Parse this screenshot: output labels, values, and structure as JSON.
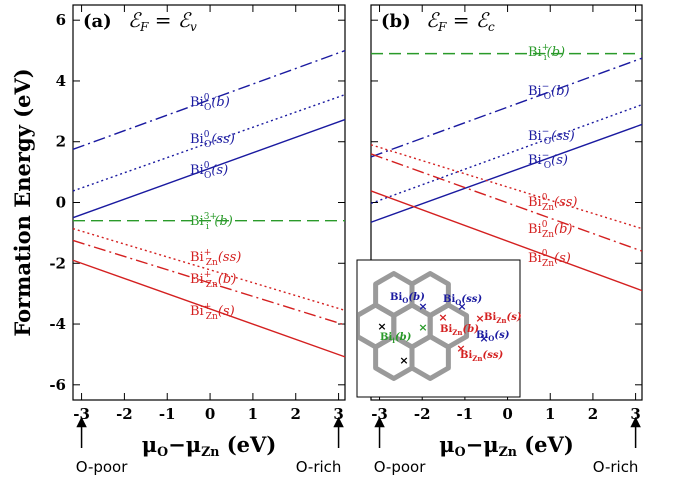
{
  "chart_data": [
    {
      "type": "line",
      "panel": "(a)",
      "title": [
        {
          "text": "ℰ"
        },
        {
          "text": "F",
          "sub": true
        },
        {
          "text": " = ℰ"
        },
        {
          "text": "v",
          "sub": true
        }
      ],
      "y_label": "Formation Energy (eV)",
      "x_label": [
        {
          "text": "μ"
        },
        {
          "text": "O",
          "sub": true
        },
        {
          "text": "−μ"
        },
        {
          "text": "Zn",
          "sub": true
        },
        {
          "text": " (eV)"
        }
      ],
      "annotations": [
        "O-poor",
        "O-rich"
      ],
      "x": [
        -3.2,
        3.15
      ],
      "xlim": [
        -3.2,
        3.15
      ],
      "ylim": [
        -6.5,
        6.5
      ],
      "xticks": [
        -3,
        -2,
        -1,
        0,
        1,
        2,
        3
      ],
      "yticks": [
        -6,
        -4,
        -2,
        0,
        2,
        4,
        6
      ],
      "show_ytick_labels": true,
      "series": [
        {
          "name": {
            "base": "Bi",
            "sub": "O",
            "sup": "0",
            "suffix": "(b)"
          },
          "color": "#1a1aa0",
          "style": "dashdot",
          "values": [
            1.75,
            5.0
          ]
        },
        {
          "name": {
            "base": "Bi",
            "sub": "O",
            "sup": "0",
            "suffix": "(ss)"
          },
          "color": "#1a1aa0",
          "style": "dotted",
          "values": [
            0.38,
            3.55
          ]
        },
        {
          "name": {
            "base": "Bi",
            "sub": "O",
            "sup": "0",
            "suffix": "(s)"
          },
          "color": "#1a1aa0",
          "style": "solid",
          "values": [
            -0.5,
            2.73
          ]
        },
        {
          "name": {
            "base": "Bi",
            "sub": "i",
            "sup": "3+",
            "suffix": "(b)"
          },
          "color": "#2a9a2a",
          "style": "dashed",
          "values": [
            -0.6,
            -0.6
          ]
        },
        {
          "name": {
            "base": "Bi",
            "sub": "Zn",
            "sup": "+",
            "suffix": "(ss)"
          },
          "color": "#d42020",
          "style": "dotted",
          "values": [
            -0.86,
            -3.55
          ]
        },
        {
          "name": {
            "base": "Bi",
            "sub": "Zn",
            "sup": "+",
            "suffix": "(b)"
          },
          "color": "#d42020",
          "style": "dashdot",
          "values": [
            -1.25,
            -4.03
          ]
        },
        {
          "name": {
            "base": "Bi",
            "sub": "Zn",
            "sup": "+",
            "suffix": "(s)"
          },
          "color": "#d42020",
          "style": "solid",
          "values": [
            -1.9,
            -5.08
          ]
        }
      ]
    },
    {
      "type": "line",
      "panel": "(b)",
      "title": [
        {
          "text": "ℰ"
        },
        {
          "text": "F",
          "sub": true
        },
        {
          "text": " = ℰ"
        },
        {
          "text": "c",
          "sub": true
        }
      ],
      "x_label": [
        {
          "text": "μ"
        },
        {
          "text": "O",
          "sub": true
        },
        {
          "text": "−μ"
        },
        {
          "text": "Zn",
          "sub": true
        },
        {
          "text": " (eV)"
        }
      ],
      "annotations": [
        "O-poor",
        "O-rich"
      ],
      "x": [
        -3.2,
        3.15
      ],
      "xlim": [
        -3.2,
        3.15
      ],
      "ylim": [
        -6.5,
        6.5
      ],
      "xticks": [
        -3,
        -2,
        -1,
        0,
        1,
        2,
        3
      ],
      "yticks": [
        -6,
        -4,
        -2,
        0,
        2,
        4,
        6
      ],
      "show_ytick_labels": false,
      "series": [
        {
          "name": {
            "base": "Bi",
            "sub": "i",
            "sup": "+",
            "suffix": "(b)"
          },
          "color": "#2a9a2a",
          "style": "dashed",
          "values": [
            4.9,
            4.9
          ]
        },
        {
          "name": {
            "base": "Bi",
            "sub": "O",
            "sup": "−",
            "suffix": "(b)"
          },
          "color": "#1a1aa0",
          "style": "dashdot",
          "values": [
            1.5,
            4.75
          ]
        },
        {
          "name": {
            "base": "Bi",
            "sub": "O",
            "sup": "−",
            "suffix": "(ss)"
          },
          "color": "#1a1aa0",
          "style": "dotted",
          "values": [
            -0.03,
            3.22
          ]
        },
        {
          "name": {
            "base": "Bi",
            "sub": "O",
            "sup": "−",
            "suffix": "(s)"
          },
          "color": "#1a1aa0",
          "style": "solid",
          "values": [
            -0.65,
            2.57
          ]
        },
        {
          "name": {
            "base": "Bi",
            "sub": "Zn",
            "sup": "0",
            "suffix": "(ss)"
          },
          "color": "#d42020",
          "style": "dotted",
          "values": [
            1.9,
            -0.86
          ]
        },
        {
          "name": {
            "base": "Bi",
            "sub": "Zn",
            "sup": "0",
            "suffix": "(b)"
          },
          "color": "#d42020",
          "style": "dashdot",
          "values": [
            1.6,
            -1.6
          ]
        },
        {
          "name": {
            "base": "Bi",
            "sub": "Zn",
            "sup": "0",
            "suffix": "(s)"
          },
          "color": "#d42020",
          "style": "solid",
          "values": [
            0.38,
            -2.9
          ]
        }
      ]
    }
  ],
  "inset": {
    "labels": [
      {
        "base": "Bi",
        "sub": "O",
        "suffix": "(b)",
        "color": "#1a1aa0"
      },
      {
        "base": "Bi",
        "sub": "O",
        "suffix": "(ss)",
        "color": "#1a1aa0"
      },
      {
        "base": "Bi",
        "sub": "Zn",
        "suffix": "(s)",
        "color": "#d42020"
      },
      {
        "base": "Bi",
        "sub": "O",
        "suffix": "(s)",
        "color": "#1a1aa0"
      },
      {
        "base": "Bi",
        "sub": "i",
        "suffix": "(b)",
        "color": "#2a9a2a"
      },
      {
        "base": "Bi",
        "sub": "Zn",
        "suffix": "(b)",
        "color": "#d42020"
      },
      {
        "base": "Bi",
        "sub": "Zn",
        "suffix": "(ss)",
        "color": "#d42020"
      }
    ]
  }
}
